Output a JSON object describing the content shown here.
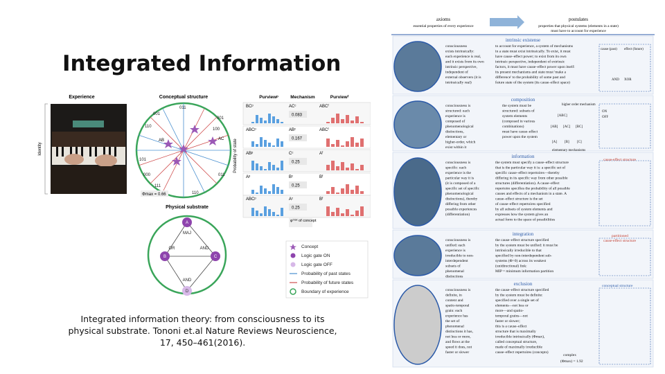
{
  "slide": {
    "title": "Integrated Information",
    "caption": "Integrated information theory: from consciousness to its physical substrate. Tononi et.al  Nature Reviews Neuroscience, 17, 450–461(2016)."
  },
  "left_figure": {
    "experience_label": "Experience",
    "identity_label": "Identity",
    "conceptual_label": "Conceptual structure",
    "physical_label": "Physical substrate",
    "phi_label": "Φmax = 0.66",
    "state_labels": [
      "001",
      "011",
      "001",
      "100",
      "110",
      "000",
      "101",
      "111",
      "110",
      "011"
    ],
    "node_labels": [
      "AB",
      "AC",
      "A",
      "B",
      "C",
      "D"
    ],
    "gates": [
      "MAJ",
      "OR",
      "AND",
      "AND"
    ],
    "col_purview_past": "Purviewᵖ",
    "col_mechanism": "Mechanism",
    "col_purview_future": "Purviewᶠ",
    "y_axis": "Probability of state",
    "rows": [
      {
        "past": "BCᵖ",
        "mech": "ACᶜ",
        "phi": "0.083",
        "future": "ABCᶠ"
      },
      {
        "past": "ABCᵖ",
        "mech": "ABᶜ",
        "phi": "0.167",
        "future": "ABCᶠ"
      },
      {
        "past": "ABᵖ",
        "mech": "Cᶜ",
        "phi": "0.25",
        "future": "Aᶠ"
      },
      {
        "past": "Aᵖ",
        "mech": "Bᶜ",
        "phi": "0.25",
        "future": "Bᶠ"
      },
      {
        "past": "ABCᵖ",
        "mech": "Aᶜ",
        "phi": "0.25",
        "future": "Bᶠ"
      }
    ],
    "concept_phi": "φᵐᵃˣ of concept",
    "legend": [
      {
        "label": "Concept",
        "icon": "star-icon"
      },
      {
        "label": "Logic gate ON",
        "icon": "dot-filled-icon"
      },
      {
        "label": "Logic gate OFF",
        "icon": "dot-light-icon"
      },
      {
        "label": "Probability of past states",
        "icon": "arrow-blue-icon"
      },
      {
        "label": "Probability of future states",
        "icon": "arrow-red-icon"
      },
      {
        "label": "Boundary of experience",
        "icon": "circle-green-icon"
      }
    ]
  },
  "right_figure": {
    "axioms_title": "axioms",
    "axioms_sub": "essential properties of every experience",
    "postulates_title": "postulates",
    "postulates_sub1": "properties that physical systems (elements in a state)",
    "postulates_sub2": "must have to account for experience",
    "sections": [
      {
        "name": "intrinsic existense",
        "axiom": [
          "consciousness",
          "exists intrinsically:",
          "each experience is real,",
          "and it exists from its own",
          "intrinsic perspective,",
          "independent of",
          "external observers (it is",
          "intrinsically real)"
        ],
        "postulate": [
          "to account for experience, a system of mechanisms",
          "in a state must exist intrinsically. To exist, it must",
          "have cause–effect power; to exist from its own",
          "intrinsic perspective, independent of extrinsic",
          "factors, it must have cause–effect power upon itself:",
          "its present mechanisms and state must 'make a",
          "difference' to the probability of some past and",
          "future state of the system (its cause–effect space)"
        ]
      },
      {
        "name": "composition",
        "axiom": [
          "consciousness is",
          "structured: each",
          "experience is",
          "composed of",
          "phenomenological",
          "distinctions,",
          "elementary or",
          "higher-order, which",
          "exist within it"
        ],
        "postulate": [
          "the system must be",
          "structured: subsets of",
          "system elements",
          "(composed in various",
          "combinations)",
          "must have cause–effect",
          "power upon the system"
        ]
      },
      {
        "name": "information",
        "axiom": [
          "consciousness is",
          "specific: each",
          "experience is the",
          "particular way it is",
          "(it is composed of a",
          "specific set of specific",
          "phenomenological",
          "distinctions), thereby",
          "differing from other",
          "possible experiences",
          "(differentiation)"
        ],
        "postulate": [
          "the system must specify a cause–effect structure",
          "that is the particular way it is: a specific set of",
          "specific cause–effect repertoires—thereby",
          "differing in its specific way from other possible",
          "structures (differentiation). A cause–effect",
          "repertoire specifies the probability of all possible",
          "causes and effects of a mechanism in a state. A",
          "cause–effect structure is the set",
          "of cause–effect repertoires specified",
          "by all subsets of system elements and",
          "expresses how the system gives an",
          "actual form to the space of  possibilities"
        ]
      },
      {
        "name": "integration",
        "axiom": [
          "consciousness is",
          "unified: each",
          "experience is",
          "irreducible to non-",
          "interdependent",
          "subsets of",
          "phenomenal",
          "distinctions"
        ],
        "postulate": [
          "the cause–effect structure specified",
          "by the system must be unified: it must be",
          "intrinsically irreducible to that",
          "specified by non-interdependent sub-",
          "systems (Φ>0) across its weakest",
          "(unidirectional) link:",
          "MIP = minimum information partition"
        ]
      },
      {
        "name": "exclusion",
        "axiom": [
          "consciousness is",
          "definite, in",
          "content and",
          "spatio-temporal",
          "grain: each",
          "experience has",
          "the set of",
          "phenomenal",
          "distinctions it has,",
          "not less or more,",
          "and flows at the",
          "speed it does, not",
          "faster or slower"
        ],
        "postulate": [
          "the cause–effect structure specified",
          "by the system must be definite:",
          "specified over a single set of",
          "elements—not less or",
          "more—and spatio-",
          "temporal grains—not",
          "faster or slower;",
          "this is a cause–effect",
          "structure that  is maximally",
          "irreducible intrinsically (Φmax),",
          "called conceptual structure,",
          "made of maximally irreducible",
          "cause–effect repertoires (concepts)"
        ]
      }
    ],
    "labels": {
      "cause_past": "cause (past)",
      "effect_future": "effect (future)",
      "higher_order": "higher order mechanism",
      "elementary": "elementary mechanisms",
      "on": "ON",
      "off": "OFF",
      "cause_effect_structure": "cause-effect structure",
      "partitioned1": "partitioned",
      "partitioned2": "cause-effect structure",
      "conceptual_structure": "conceptual structure",
      "complex": "complex",
      "phi_value": "(Φmax) = 1.92",
      "mechanisms": [
        "[ABC]",
        "[AB]",
        "[AC]",
        "[BC]",
        "[A]",
        "[B]",
        "[C]"
      ],
      "gate": "AND",
      "gate2": "XOR"
    }
  }
}
